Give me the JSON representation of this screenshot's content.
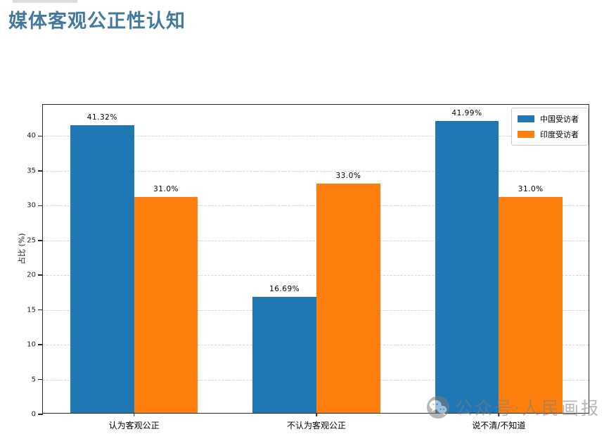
{
  "page": {
    "title": "媒体客观公正性认知",
    "title_color": "#43799f"
  },
  "watermark": {
    "icon": "wechat-icon",
    "text": "公众号·人民画报"
  },
  "chart_data": {
    "type": "bar",
    "title": "媒体客观公正性认知",
    "categories": [
      "认为客观公正",
      "不认为客观公正",
      "说不清/不知道"
    ],
    "series": [
      {
        "name": "中国受访者",
        "color": "#1f77b4",
        "values": [
          41.32,
          16.69,
          41.99
        ],
        "labels": [
          "41.32%",
          "16.69%",
          "41.99%"
        ]
      },
      {
        "name": "印度受访者",
        "color": "#ff7f0e",
        "values": [
          31.0,
          33.0,
          31.0
        ],
        "labels": [
          "31.0%",
          "33.0%",
          "31.0%"
        ]
      }
    ],
    "xlabel": "",
    "ylabel": "占比 (%)",
    "yticks": [
      0,
      5,
      10,
      15,
      20,
      25,
      30,
      35,
      40
    ],
    "ylim": [
      0,
      44.5
    ],
    "grid": "horizontal-dashed",
    "legend_position": "upper right",
    "bar_width_fraction": 0.35
  }
}
